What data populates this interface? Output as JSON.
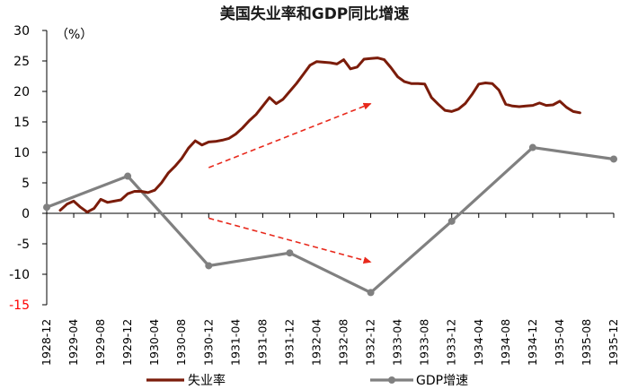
{
  "chart_data": {
    "type": "line",
    "title": "美国失业率和GDP同比增速",
    "unit_label": "（%）",
    "ylim": [
      -15,
      30
    ],
    "yticks": [
      30,
      25,
      20,
      15,
      10,
      5,
      0,
      -5,
      -10,
      -15
    ],
    "x_tick_labels": [
      "1928-12",
      "1929-04",
      "1929-08",
      "1929-12",
      "1930-04",
      "1930-08",
      "1930-12",
      "1931-04",
      "1931-08",
      "1931-12",
      "1932-04",
      "1932-08",
      "1932-12",
      "1933-04",
      "1933-08",
      "1933-12",
      "1934-04",
      "1934-08",
      "1934-12",
      "1935-04",
      "1935-08",
      "1935-12"
    ],
    "x_range": [
      "1928-12",
      "1935-12"
    ],
    "series": [
      {
        "name": "失业率",
        "color": "#7B1C0A",
        "points": [
          [
            "1929-02",
            0.5
          ],
          [
            "1929-03",
            1.5
          ],
          [
            "1929-04",
            2.0
          ],
          [
            "1929-05",
            1.0
          ],
          [
            "1929-06",
            0.2
          ],
          [
            "1929-07",
            0.8
          ],
          [
            "1929-08",
            2.3
          ],
          [
            "1929-09",
            1.8
          ],
          [
            "1929-10",
            2.0
          ],
          [
            "1929-11",
            2.2
          ],
          [
            "1929-12",
            3.2
          ],
          [
            "1930-01",
            3.6
          ],
          [
            "1930-02",
            3.6
          ],
          [
            "1930-03",
            3.4
          ],
          [
            "1930-04",
            3.8
          ],
          [
            "1930-05",
            5.0
          ],
          [
            "1930-06",
            6.6
          ],
          [
            "1930-07",
            7.7
          ],
          [
            "1930-08",
            9.0
          ],
          [
            "1930-09",
            10.7
          ],
          [
            "1930-10",
            11.9
          ],
          [
            "1930-11",
            11.2
          ],
          [
            "1930-12",
            11.7
          ],
          [
            "1931-01",
            11.8
          ],
          [
            "1931-02",
            12.0
          ],
          [
            "1931-03",
            12.3
          ],
          [
            "1931-04",
            13.0
          ],
          [
            "1931-05",
            14.0
          ],
          [
            "1931-06",
            15.2
          ],
          [
            "1931-07",
            16.2
          ],
          [
            "1931-08",
            17.6
          ],
          [
            "1931-09",
            19.0
          ],
          [
            "1931-10",
            18.0
          ],
          [
            "1931-11",
            18.7
          ],
          [
            "1931-12",
            20.0
          ],
          [
            "1932-01",
            21.3
          ],
          [
            "1932-02",
            22.8
          ],
          [
            "1932-03",
            24.3
          ],
          [
            "1932-04",
            24.9
          ],
          [
            "1932-05",
            24.8
          ],
          [
            "1932-06",
            24.7
          ],
          [
            "1932-07",
            24.5
          ],
          [
            "1932-08",
            25.2
          ],
          [
            "1932-09",
            23.7
          ],
          [
            "1932-10",
            24.0
          ],
          [
            "1932-11",
            25.3
          ],
          [
            "1932-12",
            25.4
          ],
          [
            "1933-01",
            25.5
          ],
          [
            "1933-02",
            25.2
          ],
          [
            "1933-03",
            23.9
          ],
          [
            "1933-04",
            22.4
          ],
          [
            "1933-05",
            21.6
          ],
          [
            "1933-06",
            21.3
          ],
          [
            "1933-07",
            21.3
          ],
          [
            "1933-08",
            21.2
          ],
          [
            "1933-09",
            19.0
          ],
          [
            "1933-10",
            17.9
          ],
          [
            "1933-11",
            16.9
          ],
          [
            "1933-12",
            16.7
          ],
          [
            "1934-01",
            17.1
          ],
          [
            "1934-02",
            18.0
          ],
          [
            "1934-03",
            19.5
          ],
          [
            "1934-04",
            21.2
          ],
          [
            "1934-05",
            21.4
          ],
          [
            "1934-06",
            21.3
          ],
          [
            "1934-07",
            20.2
          ],
          [
            "1934-08",
            17.9
          ],
          [
            "1934-09",
            17.6
          ],
          [
            "1934-10",
            17.5
          ],
          [
            "1934-11",
            17.6
          ],
          [
            "1934-12",
            17.7
          ],
          [
            "1935-01",
            18.1
          ],
          [
            "1935-02",
            17.7
          ],
          [
            "1935-03",
            17.8
          ],
          [
            "1935-04",
            18.4
          ],
          [
            "1935-05",
            17.4
          ],
          [
            "1935-06",
            16.7
          ],
          [
            "1935-07",
            16.5
          ]
        ]
      },
      {
        "name": "GDP增速",
        "color": "#808080",
        "points": [
          [
            "1928-12",
            1.0
          ],
          [
            "1929-12",
            6.1
          ],
          [
            "1930-12",
            -8.6
          ],
          [
            "1931-12",
            -6.5
          ],
          [
            "1932-12",
            -13.0
          ],
          [
            "1933-12",
            -1.3
          ],
          [
            "1934-12",
            10.8
          ],
          [
            "1935-12",
            8.9
          ]
        ]
      }
    ],
    "annotations": [
      {
        "type": "dashed-arrow",
        "color": "#E8291C",
        "from": [
          "1930-12",
          7.5
        ],
        "to": [
          "1932-12",
          18.0
        ]
      },
      {
        "type": "dashed-arrow",
        "color": "#E8291C",
        "from": [
          "1930-12",
          -0.8
        ],
        "to": [
          "1932-12",
          -8.0
        ]
      }
    ],
    "legend": {
      "placement": "bottom"
    }
  }
}
